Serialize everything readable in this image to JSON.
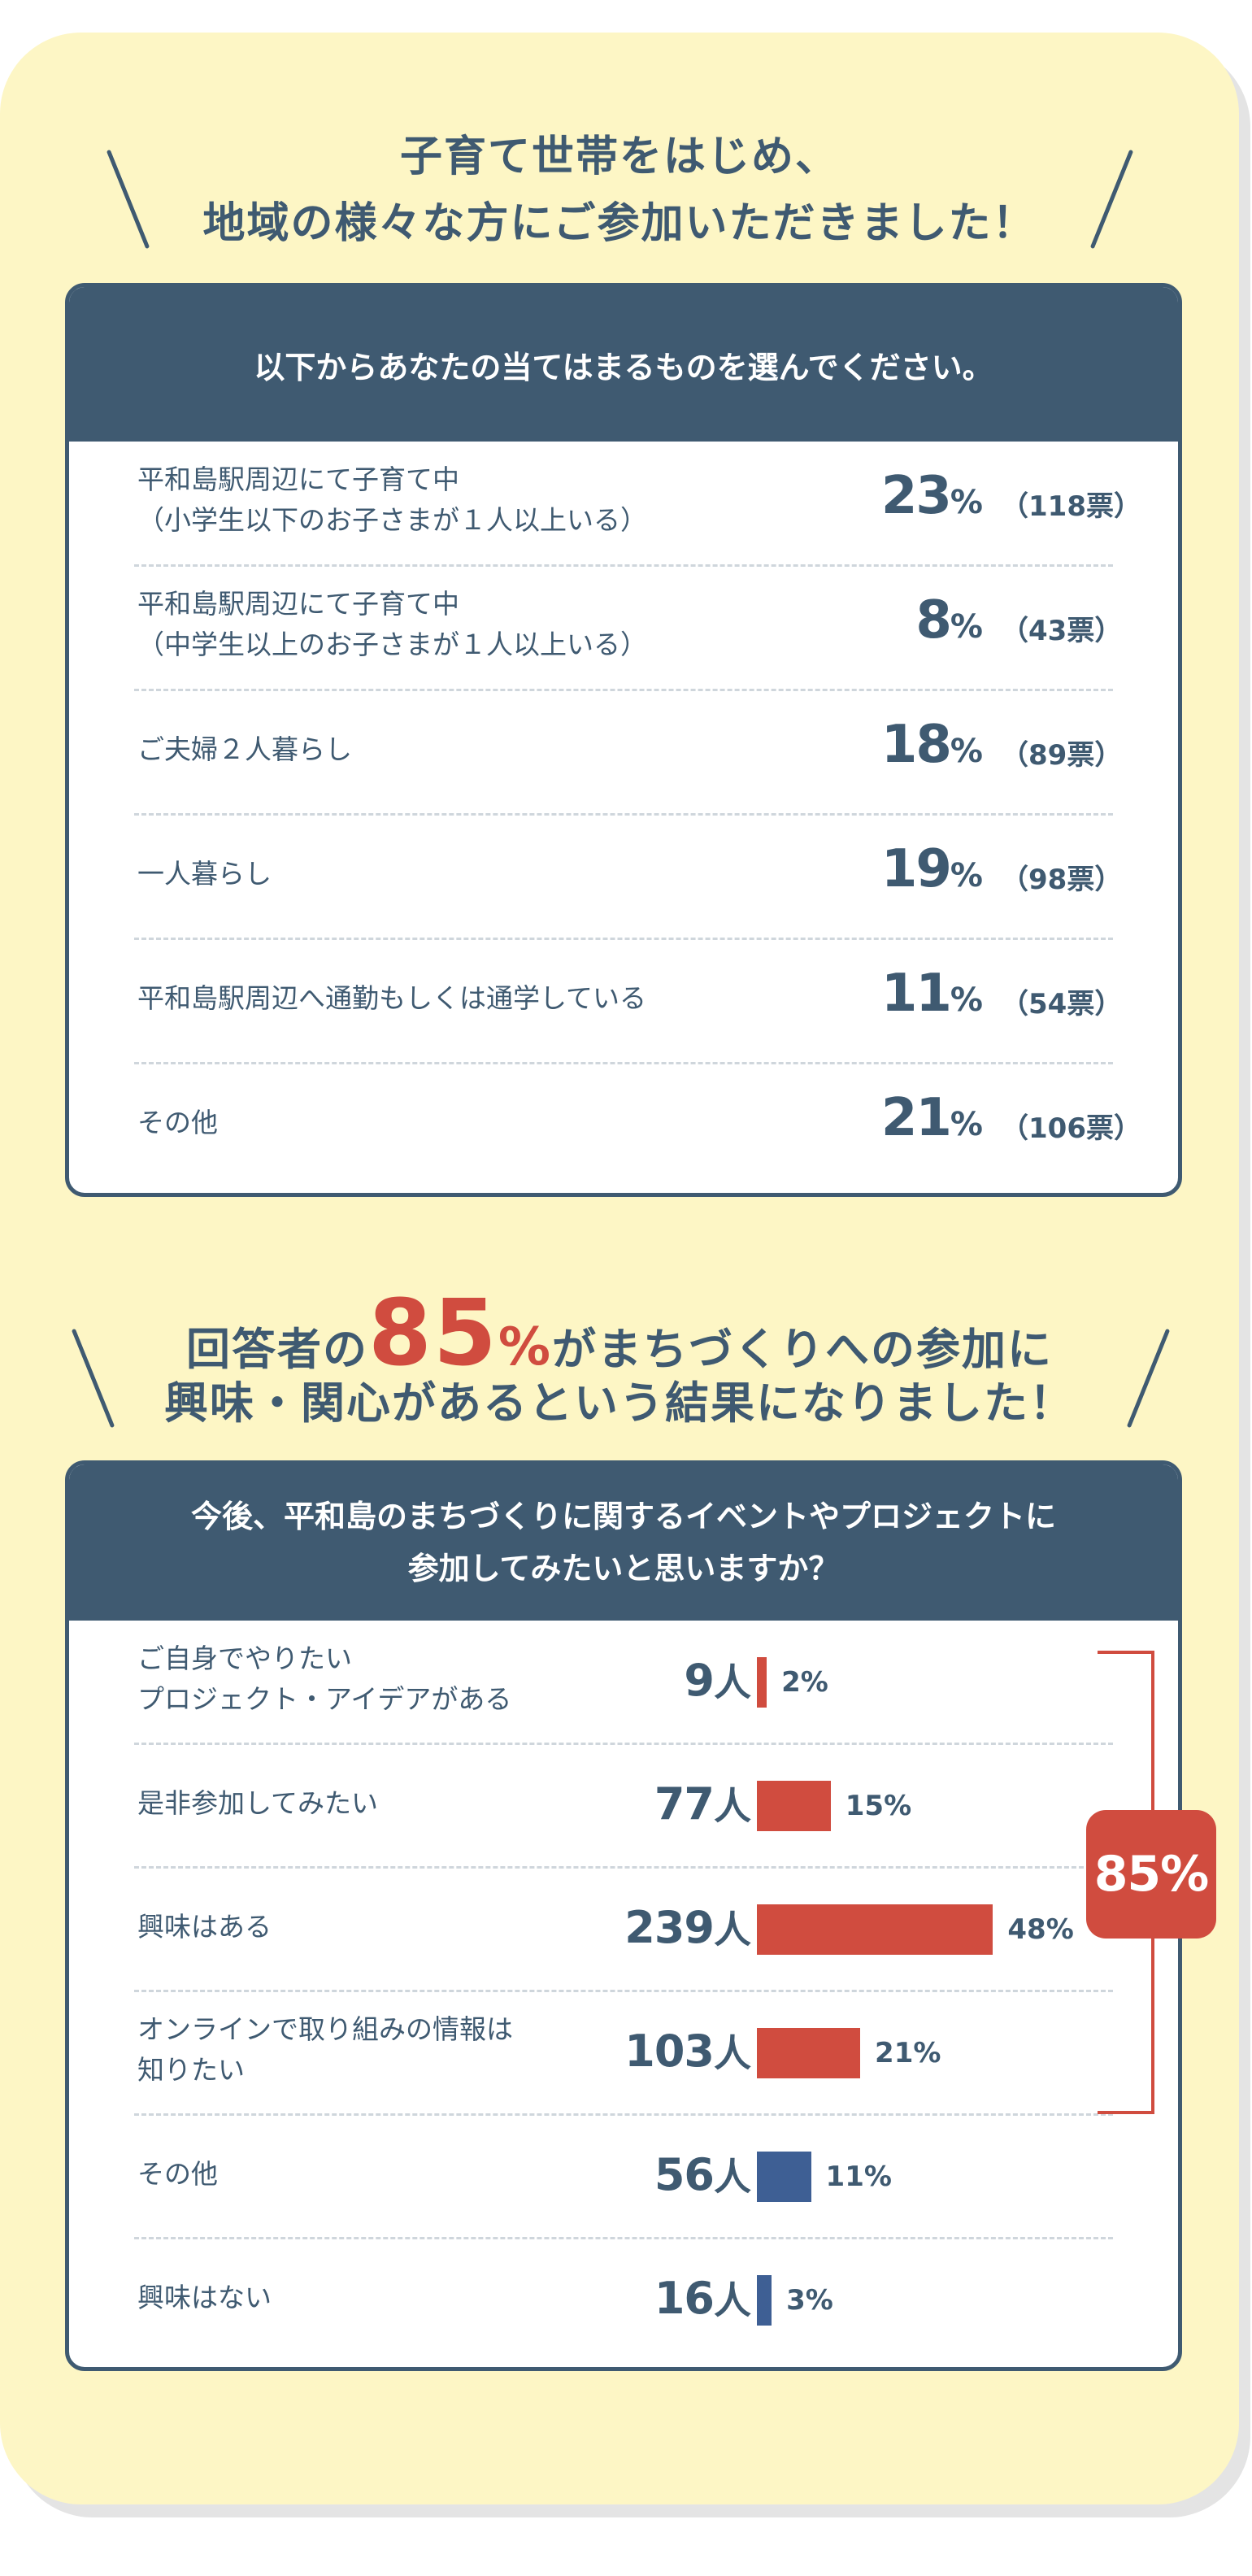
{
  "section1": {
    "heading_line1": "子育て世帯をはじめ、",
    "heading_line2": "地域の様々な方にご参加いただきました！",
    "question": "以下からあなたの当てはまるものを選んでください。"
  },
  "section2": {
    "heading_pre": "回答者の",
    "heading_num": "85",
    "heading_pct": "%",
    "heading_post": "がまちづくりへの参加に",
    "heading_line2": "興味・関心があるという結果になりました！",
    "question_line1": "今後、平和島のまちづくりに関するイベントやプロジェクトに",
    "question_line2": "参加してみたいと思いますか？",
    "bracket_label": "85%"
  },
  "colors": {
    "accent": "#d04c3f",
    "navy": "#3f5a71",
    "blue_bar": "#3e5f94",
    "background": "#fdf6c5"
  },
  "chart_data": [
    {
      "type": "table",
      "title": "以下からあなたの当てはまるものを選んでください。",
      "rows": [
        {
          "label_line1": "平和島駅周辺にて子育て中",
          "label_line2": "（小学生以下のお子さまが１人以上いる）",
          "percent": 23,
          "percent_text": "23",
          "votes": "（118票）"
        },
        {
          "label_line1": "平和島駅周辺にて子育て中",
          "label_line2": "（中学生以上のお子さまが１人以上いる）",
          "percent": 8,
          "percent_text": "8",
          "votes": "（43票）"
        },
        {
          "label_line1": "ご夫婦２人暮らし",
          "label_line2": "",
          "percent": 18,
          "percent_text": "18",
          "votes": "（89票）"
        },
        {
          "label_line1": "一人暮らし",
          "label_line2": "",
          "percent": 19,
          "percent_text": "19",
          "votes": "（98票）"
        },
        {
          "label_line1": "平和島駅周辺へ通勤もしくは通学している",
          "label_line2": "",
          "percent": 11,
          "percent_text": "11",
          "votes": "（54票）"
        },
        {
          "label_line1": "その他",
          "label_line2": "",
          "percent": 21,
          "percent_text": "21",
          "votes": "（106票）"
        }
      ],
      "percent_unit": "%"
    },
    {
      "type": "bar",
      "title": "今後、平和島のまちづくりに関するイベントやプロジェクトに参加してみたいと思いますか？",
      "categories": [
        "ご自身でやりたいプロジェクト・アイデアがある",
        "是非参加してみたい",
        "興味はある",
        "オンラインで取り組みの情報は知りたい",
        "その他",
        "興味はない"
      ],
      "rows": [
        {
          "label_line1": "ご自身でやりたい",
          "label_line2": "プロジェクト・アイデアがある",
          "count": 9,
          "count_text": "9",
          "percent": 2,
          "percent_text": "2%",
          "highlight": true
        },
        {
          "label_line1": "是非参加してみたい",
          "label_line2": "",
          "count": 77,
          "count_text": "77",
          "percent": 15,
          "percent_text": "15%",
          "highlight": true
        },
        {
          "label_line1": "興味はある",
          "label_line2": "",
          "count": 239,
          "count_text": "239",
          "percent": 48,
          "percent_text": "48%",
          "highlight": true
        },
        {
          "label_line1": "オンラインで取り組みの情報は",
          "label_line2": "知りたい",
          "count": 103,
          "count_text": "103",
          "percent": 21,
          "percent_text": "21%",
          "highlight": true
        },
        {
          "label_line1": "その他",
          "label_line2": "",
          "count": 56,
          "count_text": "56",
          "percent": 11,
          "percent_text": "11%",
          "highlight": false
        },
        {
          "label_line1": "興味はない",
          "label_line2": "",
          "count": 16,
          "count_text": "16",
          "percent": 3,
          "percent_text": "3%",
          "highlight": false
        }
      ],
      "values": [
        2,
        15,
        48,
        21,
        11,
        3
      ],
      "counts": [
        9,
        77,
        239,
        103,
        56,
        16
      ],
      "count_unit": "人",
      "bracket_total": "85%"
    }
  ]
}
